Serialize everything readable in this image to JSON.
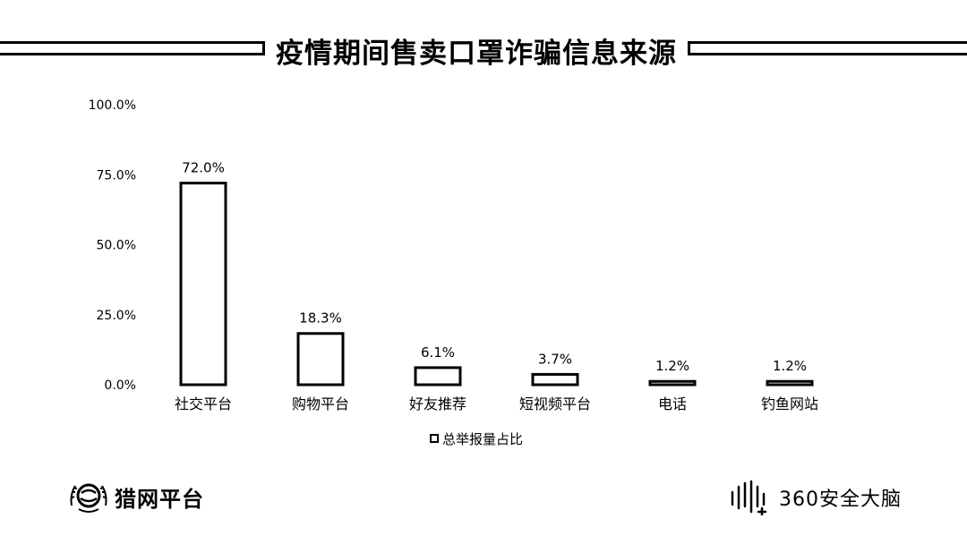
{
  "title": "疫情期间售卖口罩诈骗信息来源",
  "legend": {
    "label": "总举报量占比"
  },
  "chart_data": {
    "type": "bar",
    "title": "疫情期间售卖口罩诈骗信息来源",
    "categories": [
      "社交平台",
      "购物平台",
      "好友推荐",
      "短视频平台",
      "电话",
      "钓鱼网站"
    ],
    "series": [
      {
        "name": "总举报量占比",
        "values": [
          72.0,
          18.3,
          6.1,
          3.7,
          1.2,
          1.2
        ]
      }
    ],
    "value_labels": [
      "72.0%",
      "18.3%",
      "6.1%",
      "3.7%",
      "1.2%",
      "1.2%"
    ],
    "ylim": [
      0,
      100
    ],
    "yticks": [
      0,
      25,
      50,
      75,
      100
    ],
    "ytick_labels": [
      "0.0%",
      "25.0%",
      "50.0%",
      "75.0%",
      "100.0%"
    ],
    "xlabel": "",
    "ylabel": "",
    "grid": false,
    "legend_position": "bottom"
  },
  "logos": {
    "left": {
      "name": "猎网平台"
    },
    "right": {
      "name": "360安全大脑"
    }
  }
}
